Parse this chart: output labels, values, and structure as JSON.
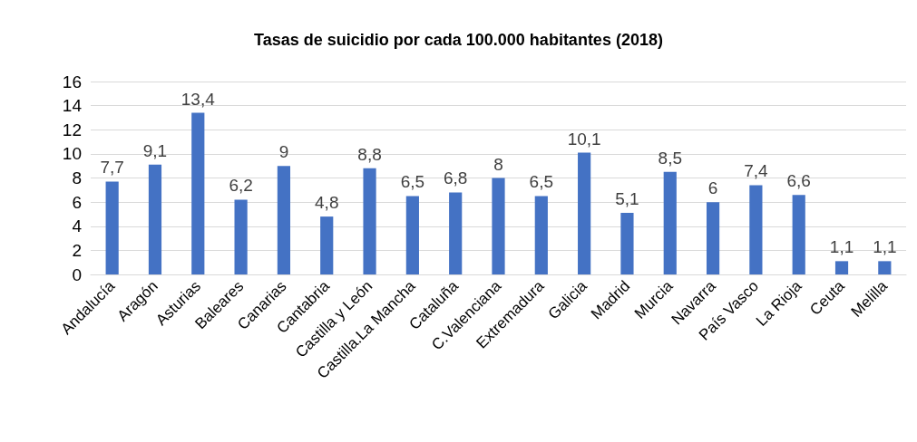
{
  "chart_data": {
    "type": "bar",
    "title": "Tasas de suicidio por cada 100.000 habitantes (2018)",
    "categories": [
      "Andalucía",
      "Aragón",
      "Asturias",
      "Baleares",
      "Canarias",
      "Cantabria",
      "Castilla y León",
      "Castilla.La Mancha",
      "Cataluña",
      "C.Valenciana",
      "Extremadura",
      "Galicia",
      "Madrid",
      "Murcia",
      "Navarra",
      "País Vasco",
      "La Rioja",
      "Ceuta",
      "Melilla"
    ],
    "values": [
      7.7,
      9.1,
      13.4,
      6.2,
      9,
      4.8,
      8.8,
      6.5,
      6.8,
      8,
      6.5,
      10.1,
      5.1,
      8.5,
      6,
      7.4,
      6.6,
      1.1,
      1.1
    ],
    "value_labels": [
      "7,7",
      "9,1",
      "13,4",
      "6,2",
      "9",
      "4,8",
      "8,8",
      "6,5",
      "6,8",
      "8",
      "6,5",
      "10,1",
      "5,1",
      "8,5",
      "6",
      "7,4",
      "6,6",
      "1,1",
      "1,1"
    ],
    "color": "#4472c4",
    "ylim": [
      0,
      16
    ],
    "yticks": [
      0,
      2,
      4,
      6,
      8,
      10,
      12,
      14,
      16
    ],
    "grid": "y"
  }
}
